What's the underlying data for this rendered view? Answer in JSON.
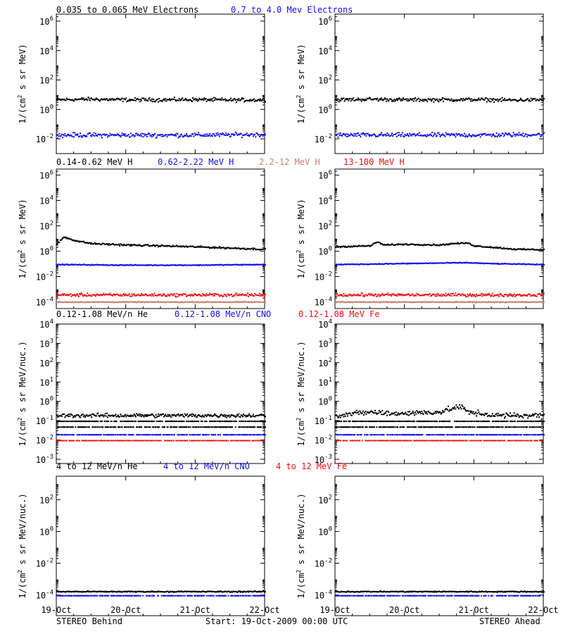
{
  "colors": {
    "black": "#000000",
    "blue": "#1010ee",
    "brown": "#c8826e",
    "red": "#ee1010"
  },
  "footer": {
    "left": "STEREO Behind",
    "center": "Start: 19-Oct-2009 00:00 UTC",
    "right": "STEREO Ahead"
  },
  "xticks": [
    "19-Oct",
    "20-Oct",
    "21-Oct",
    "22-Oct"
  ],
  "chart_data": [
    {
      "type": "scatter",
      "row": 0,
      "log_y": true,
      "ylim": [
        0.001,
        3000000
      ],
      "ylabel_base": "1/(cm",
      "ylabel_sup": "2",
      "ylabel_tail": " s sr MeV)",
      "yticks": [
        {
          "mant": "10",
          "exp": "-2",
          "v": 0.01
        },
        {
          "mant": "10",
          "exp": "0",
          "v": 1
        },
        {
          "mant": "10",
          "exp": "2",
          "v": 100
        },
        {
          "mant": "10",
          "exp": "4",
          "v": 10000
        },
        {
          "mant": "10",
          "exp": "6",
          "v": 1000000
        }
      ],
      "legend": [
        {
          "text": "0.035 to 0.065 MeV Electrons",
          "color": "black"
        },
        {
          "text": "0.7 to 4.0 Mev Electrons",
          "color": "blue"
        }
      ],
      "panels": [
        {
          "name": "STEREO Behind",
          "series": [
            {
              "color": "black",
              "pts": [
                [
                  0.0,
                  5
                ],
                [
                  0.5,
                  5.5
                ],
                [
                  1.0,
                  5
                ],
                [
                  1.5,
                  5
                ],
                [
                  2.0,
                  5.2
                ],
                [
                  2.5,
                  4.8
                ],
                [
                  3.0,
                  5
                ]
              ],
              "jitter": 0.18
            },
            {
              "color": "blue",
              "pts": [
                [
                  0.0,
                  0.02
                ],
                [
                  1.0,
                  0.02
                ],
                [
                  2.0,
                  0.02
                ],
                [
                  3.0,
                  0.022
                ]
              ],
              "jitter": 0.22
            }
          ]
        },
        {
          "name": "STEREO Ahead",
          "series": [
            {
              "color": "black",
              "pts": [
                [
                  0.0,
                  5
                ],
                [
                  0.5,
                  5.5
                ],
                [
                  1.0,
                  5
                ],
                [
                  1.5,
                  5
                ],
                [
                  2.0,
                  5.2
                ],
                [
                  2.5,
                  4.8
                ],
                [
                  3.0,
                  5
                ]
              ],
              "jitter": 0.18
            },
            {
              "color": "blue",
              "pts": [
                [
                  0.0,
                  0.02
                ],
                [
                  1.0,
                  0.02
                ],
                [
                  2.0,
                  0.02
                ],
                [
                  3.0,
                  0.022
                ]
              ],
              "jitter": 0.22
            }
          ]
        }
      ]
    },
    {
      "type": "scatter",
      "row": 1,
      "log_y": true,
      "ylim": [
        3e-05,
        3000000
      ],
      "ylabel_base": "1/(cm",
      "ylabel_sup": "2",
      "ylabel_tail": " s sr MeV)",
      "yticks": [
        {
          "mant": "10",
          "exp": "-4",
          "v": 0.0001
        },
        {
          "mant": "10",
          "exp": "-2",
          "v": 0.01
        },
        {
          "mant": "10",
          "exp": "0",
          "v": 1
        },
        {
          "mant": "10",
          "exp": "2",
          "v": 100
        },
        {
          "mant": "10",
          "exp": "4",
          "v": 10000
        },
        {
          "mant": "10",
          "exp": "6",
          "v": 1000000
        }
      ],
      "legend": [
        {
          "text": "0.14-0.62 MeV H",
          "color": "black"
        },
        {
          "text": "0.62-2.22 MeV H",
          "color": "blue"
        },
        {
          "text": "2.2-12 MeV H",
          "color": "brown"
        },
        {
          "text": "13-100 MeV H",
          "color": "red"
        }
      ],
      "panels": [
        {
          "name": "STEREO Behind",
          "series": [
            {
              "color": "black",
              "pts": [
                [
                  0.0,
                  4
                ],
                [
                  0.1,
                  15
                ],
                [
                  0.2,
                  10
                ],
                [
                  0.3,
                  7
                ],
                [
                  0.5,
                  4.5
                ],
                [
                  1.0,
                  3.5
                ],
                [
                  1.5,
                  3
                ],
                [
                  2.0,
                  2.5
                ],
                [
                  2.5,
                  2
                ],
                [
                  3.0,
                  1.6
                ]
              ],
              "jitter": 0.1
            },
            {
              "color": "blue",
              "pts": [
                [
                  0.0,
                  0.1
                ],
                [
                  1.0,
                  0.09
                ],
                [
                  2.0,
                  0.09
                ],
                [
                  3.0,
                  0.1
                ]
              ],
              "jitter": 0.05
            },
            {
              "color": "red",
              "pts": [
                [
                  0.0,
                  0.0004
                ],
                [
                  1.5,
                  0.0004
                ],
                [
                  3.0,
                  0.0004
                ]
              ],
              "jitter": 0.18
            },
            {
              "color": "brown",
              "pts": [
                [
                  0.0,
                  0.00011
                ],
                [
                  3.0,
                  0.00011
                ]
              ],
              "jitter": 0.05
            }
          ]
        },
        {
          "name": "STEREO Ahead",
          "series": [
            {
              "color": "black",
              "pts": [
                [
                  0.0,
                  2.5
                ],
                [
                  0.5,
                  3
                ],
                [
                  0.6,
                  6
                ],
                [
                  0.7,
                  3.5
                ],
                [
                  1.0,
                  4
                ],
                [
                  1.5,
                  3.5
                ],
                [
                  1.7,
                  4.5
                ],
                [
                  1.9,
                  5
                ],
                [
                  2.0,
                  3
                ],
                [
                  2.3,
                  2.2
                ],
                [
                  2.6,
                  1.6
                ],
                [
                  3.0,
                  1.5
                ]
              ],
              "jitter": 0.08
            },
            {
              "color": "blue",
              "pts": [
                [
                  0.0,
                  0.1
                ],
                [
                  1.0,
                  0.12
                ],
                [
                  1.9,
                  0.14
                ],
                [
                  2.2,
                  0.12
                ],
                [
                  3.0,
                  0.1
                ]
              ],
              "jitter": 0.05
            },
            {
              "color": "red",
              "pts": [
                [
                  0.0,
                  0.0004
                ],
                [
                  1.5,
                  0.0004
                ],
                [
                  3.0,
                  0.0004
                ]
              ],
              "jitter": 0.18
            },
            {
              "color": "brown",
              "pts": [
                [
                  0.0,
                  0.00011
                ],
                [
                  3.0,
                  0.00011
                ]
              ],
              "jitter": 0.05
            }
          ]
        }
      ]
    },
    {
      "type": "scatter",
      "row": 2,
      "log_y": true,
      "ylim": [
        0.0006,
        10000
      ],
      "ylabel_base": "1/(cm",
      "ylabel_sup": "2",
      "ylabel_tail": " s sr MeV/nuc.)",
      "yticks": [
        {
          "mant": "10",
          "exp": "-3",
          "v": 0.001
        },
        {
          "mant": "10",
          "exp": "-2",
          "v": 0.01
        },
        {
          "mant": "10",
          "exp": "-1",
          "v": 0.1
        },
        {
          "mant": "10",
          "exp": "0",
          "v": 1
        },
        {
          "mant": "10",
          "exp": "1",
          "v": 10
        },
        {
          "mant": "10",
          "exp": "2",
          "v": 100
        },
        {
          "mant": "10",
          "exp": "3",
          "v": 1000
        },
        {
          "mant": "10",
          "exp": "4",
          "v": 10000
        }
      ],
      "legend": [
        {
          "text": "0.12-1.08 MeV/n He",
          "color": "black"
        },
        {
          "text": "0.12-1.08 MeV/n CNO",
          "color": "blue"
        },
        {
          "text": "0.12-1.08 MeV Fe",
          "color": "red"
        }
      ],
      "panels": [
        {
          "name": "STEREO Behind",
          "series": [
            {
              "color": "black",
              "pts": [
                [
                  0.0,
                  0.2
                ],
                [
                  3.0,
                  0.2
                ]
              ],
              "jitter": 0.15
            },
            {
              "color": "black",
              "pts": [
                [
                  0.0,
                  0.1
                ],
                [
                  3.0,
                  0.1
                ]
              ],
              "jitter": 0.0
            },
            {
              "color": "black",
              "pts": [
                [
                  0.0,
                  0.05
                ],
                [
                  3.0,
                  0.05
                ]
              ],
              "jitter": 0.0
            },
            {
              "color": "blue",
              "pts": [
                [
                  0.0,
                  0.02
                ],
                [
                  3.0,
                  0.02
                ]
              ],
              "jitter": 0.0
            },
            {
              "color": "red",
              "pts": [
                [
                  0.0,
                  0.01
                ],
                [
                  3.0,
                  0.01
                ]
              ],
              "jitter": 0.0
            }
          ]
        },
        {
          "name": "STEREO Ahead",
          "series": [
            {
              "color": "black",
              "pts": [
                [
                  0.0,
                  0.2
                ],
                [
                  0.5,
                  0.3
                ],
                [
                  0.8,
                  0.25
                ],
                [
                  1.5,
                  0.3
                ],
                [
                  1.8,
                  0.6
                ],
                [
                  1.9,
                  0.3
                ],
                [
                  2.3,
                  0.2
                ],
                [
                  3.0,
                  0.2
                ]
              ],
              "jitter": 0.2
            },
            {
              "color": "black",
              "pts": [
                [
                  0.0,
                  0.1
                ],
                [
                  3.0,
                  0.1
                ]
              ],
              "jitter": 0.0
            },
            {
              "color": "black",
              "pts": [
                [
                  0.0,
                  0.05
                ],
                [
                  3.0,
                  0.05
                ]
              ],
              "jitter": 0.0
            },
            {
              "color": "blue",
              "pts": [
                [
                  0.0,
                  0.02
                ],
                [
                  3.0,
                  0.02
                ]
              ],
              "jitter": 0.0
            },
            {
              "color": "red",
              "pts": [
                [
                  0.0,
                  0.01
                ],
                [
                  3.0,
                  0.01
                ]
              ],
              "jitter": 0.0
            }
          ]
        }
      ]
    },
    {
      "type": "scatter",
      "row": 3,
      "log_y": true,
      "ylim": [
        5e-06,
        3000
      ],
      "ylabel_base": "1/(cm",
      "ylabel_sup": "2",
      "ylabel_tail": " s sr MeV/nuc.)",
      "yticks": [
        {
          "mant": "10",
          "exp": "-4",
          "v": 0.0001
        },
        {
          "mant": "10",
          "exp": "-2",
          "v": 0.01
        },
        {
          "mant": "10",
          "exp": "0",
          "v": 1
        },
        {
          "mant": "10",
          "exp": "2",
          "v": 100
        }
      ],
      "legend": [
        {
          "text": "4 to 12 MeV/n He",
          "color": "black"
        },
        {
          "text": "4 to 12 MeV/n CNO",
          "color": "blue"
        },
        {
          "text": "4 to 12 MeV Fe",
          "color": "red"
        }
      ],
      "panels": [
        {
          "name": "STEREO Behind",
          "series": [
            {
              "color": "black",
              "pts": [
                [
                  0.0,
                  0.00018
                ],
                [
                  3.0,
                  0.00018
                ]
              ],
              "jitter": 0.05
            },
            {
              "color": "blue",
              "pts": [
                [
                  0.0,
                  0.0001
                ],
                [
                  3.0,
                  0.0001
                ]
              ],
              "jitter": 0.0
            }
          ]
        },
        {
          "name": "STEREO Ahead",
          "series": [
            {
              "color": "black",
              "pts": [
                [
                  0.0,
                  0.00018
                ],
                [
                  3.0,
                  0.00018
                ]
              ],
              "jitter": 0.05
            },
            {
              "color": "blue",
              "pts": [
                [
                  0.0,
                  0.0001
                ],
                [
                  3.0,
                  0.0001
                ]
              ],
              "jitter": 0.0
            }
          ]
        }
      ]
    }
  ]
}
